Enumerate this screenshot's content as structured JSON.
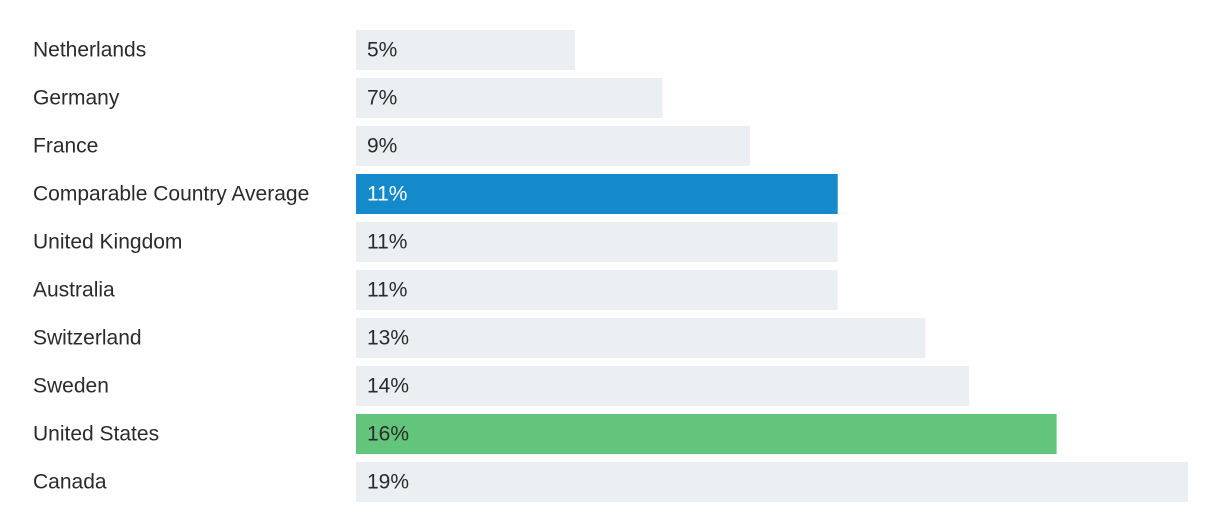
{
  "chart_data": {
    "type": "bar",
    "orientation": "horizontal",
    "categories": [
      "Netherlands",
      "Germany",
      "France",
      "Comparable Country Average",
      "United Kingdom",
      "Australia",
      "Switzerland",
      "Sweden",
      "United States",
      "Canada"
    ],
    "values": [
      5,
      7,
      9,
      11,
      11,
      11,
      13,
      14,
      16,
      19
    ],
    "value_labels": [
      "5%",
      "7%",
      "9%",
      "11%",
      "11%",
      "11%",
      "13%",
      "14%",
      "16%",
      "19%"
    ],
    "unit": "%",
    "xlim": [
      0,
      19
    ],
    "grid": false,
    "legend": "none",
    "colors": {
      "default": "#ebeff2",
      "highlight_average": "#158acb",
      "highlight_us": "#63c57c"
    },
    "bar_colors": [
      "default",
      "default",
      "default",
      "highlight_average",
      "default",
      "default",
      "default",
      "default",
      "highlight_us",
      "default"
    ]
  }
}
